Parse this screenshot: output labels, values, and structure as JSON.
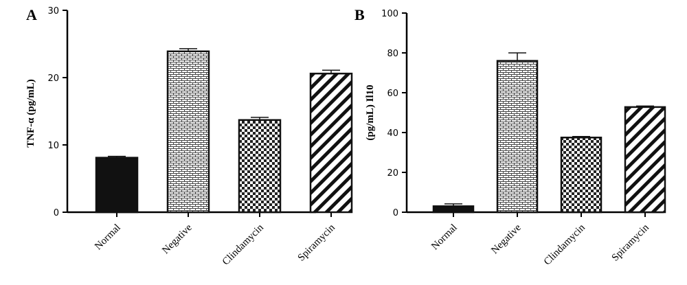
{
  "chart_data": [
    {
      "type": "bar",
      "panel": "A",
      "title": "",
      "xlabel": "",
      "ylabel": "TNF-α (pg/mL)",
      "ylim": [
        0,
        30
      ],
      "yticks": [
        "0",
        "10",
        "20",
        "30"
      ],
      "categories": [
        "Normal",
        "Negative",
        "Clindamycin",
        "Spiramycin"
      ],
      "values": [
        8.1,
        23.9,
        13.7,
        20.6
      ],
      "errors": [
        0.2,
        0.4,
        0.4,
        0.5
      ],
      "fills": [
        "solid",
        "brick",
        "checker",
        "diagonal"
      ],
      "grid": false,
      "legend": "none"
    },
    {
      "type": "bar",
      "panel": "B",
      "title": "",
      "xlabel": "",
      "ylabel": "(pg/mL) Il10",
      "ylim": [
        0,
        100
      ],
      "yticks": [
        "0",
        "20",
        "40",
        "60",
        "80",
        "100"
      ],
      "categories": [
        "Normal",
        "Negative",
        "Clindamycin",
        "Spiramycin"
      ],
      "values": [
        3.0,
        76.0,
        37.5,
        52.8
      ],
      "errors": [
        1.2,
        4.0,
        0.5,
        0.5
      ],
      "fills": [
        "solid",
        "brick",
        "checker",
        "diagonal"
      ],
      "grid": false,
      "legend": "none"
    }
  ],
  "colors": {
    "bar_stroke": "#111111",
    "solid_fill": "#111111",
    "axis": "#000000",
    "background": "#ffffff"
  }
}
